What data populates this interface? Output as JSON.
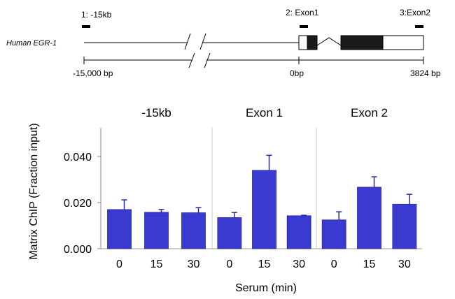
{
  "gene_diagram": {
    "gene_label": "Human EGR-1",
    "probes": [
      {
        "label": "1: -15kb"
      },
      {
        "label": "2: Exon1"
      },
      {
        "label": "3:Exon2"
      }
    ],
    "scale": {
      "left_label": "-15,000  bp",
      "mid_label": "0bp",
      "right_label": "3824 bp"
    }
  },
  "chart_data": {
    "type": "bar",
    "ylabel": "Matrix ChIP (Fraction input)",
    "xlabel": "Serum (min)",
    "ylim": [
      0,
      0.05
    ],
    "yticks": [
      "0.000",
      "0.020",
      "0.040"
    ],
    "ytick_values": [
      0,
      0.02,
      0.04
    ],
    "categories": [
      "0",
      "15",
      "30"
    ],
    "bar_color": "#3a3ad0",
    "panels": [
      {
        "title": "-15kb",
        "values": [
          0.017,
          0.0158,
          0.0156
        ],
        "errors": [
          0.0042,
          0.0012,
          0.0022
        ]
      },
      {
        "title": "Exon 1",
        "values": [
          0.0135,
          0.034,
          0.0143
        ],
        "errors": [
          0.0022,
          0.0065,
          0.0002
        ]
      },
      {
        "title": "Exon 2",
        "values": [
          0.0125,
          0.0267,
          0.0193
        ],
        "errors": [
          0.0035,
          0.0045,
          0.0043
        ]
      }
    ]
  }
}
